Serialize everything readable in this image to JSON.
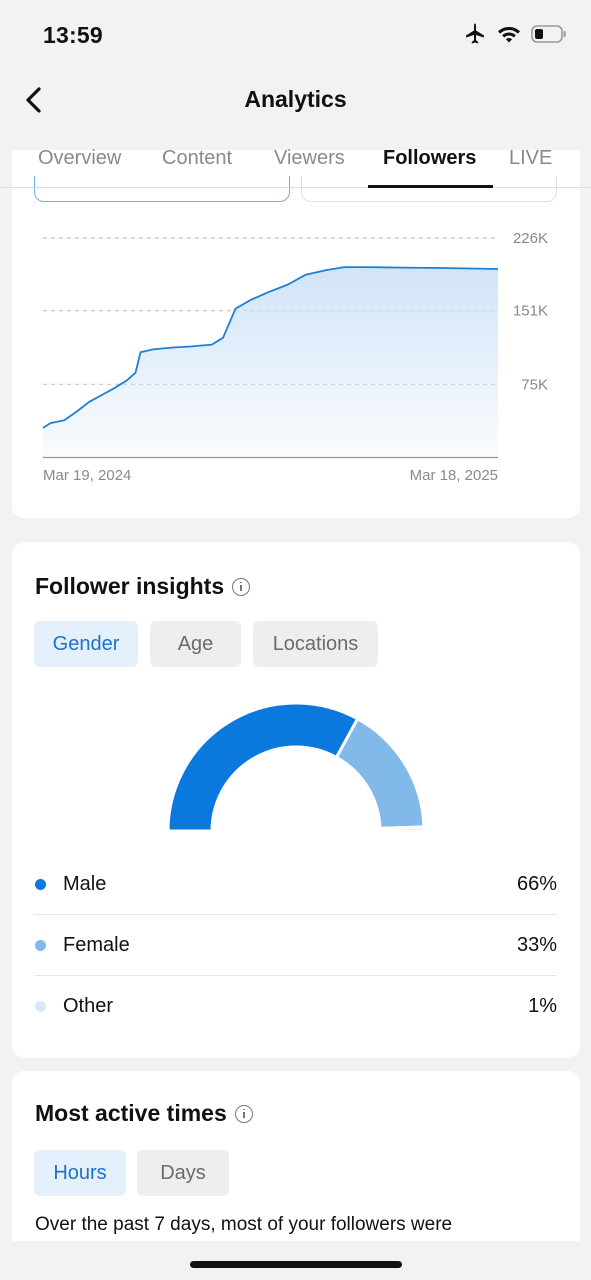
{
  "status_bar": {
    "time": "13:59",
    "icons": [
      "airplane-icon",
      "wifi-icon",
      "battery-icon"
    ]
  },
  "header": {
    "title": "Analytics",
    "back_icon": "chevron-left-icon"
  },
  "tabs": [
    {
      "label": "Overview",
      "active": false
    },
    {
      "label": "Content",
      "active": false
    },
    {
      "label": "Viewers",
      "active": false
    },
    {
      "label": "Followers",
      "active": true
    },
    {
      "label": "LIVE",
      "active": false
    }
  ],
  "chart_data": {
    "type": "area",
    "title": "",
    "xlabel": "",
    "ylabel": "",
    "x_ticks": [
      "Mar 19, 2024",
      "Mar 18, 2025"
    ],
    "y_ticks": [
      {
        "label": "226K",
        "value": 226000
      },
      {
        "label": "151K",
        "value": 151000
      },
      {
        "label": "75K",
        "value": 75000
      }
    ],
    "ylim": [
      0,
      226000
    ],
    "grid": true,
    "x_start_label": "Mar 19, 2024",
    "x_end_label": "Mar 18, 2025",
    "line_color": "#1e7fd6",
    "fill_color": "#cfe3f7",
    "series": [
      {
        "x": [
          "2024-03-19",
          "2024-03-25",
          "2024-04-05",
          "2024-04-15",
          "2024-04-25",
          "2024-05-05",
          "2024-05-15",
          "2024-05-25",
          "2024-06-01",
          "2024-06-05",
          "2024-06-15",
          "2024-07-01",
          "2024-07-15",
          "2024-08-01",
          "2024-08-10",
          "2024-08-20",
          "2024-09-01",
          "2024-09-15",
          "2024-10-01",
          "2024-10-15",
          "2024-11-01",
          "2024-11-15",
          "2024-12-01",
          "2025-01-01",
          "2025-02-01",
          "2025-03-18"
        ],
        "values": [
          30000,
          35000,
          38000,
          47000,
          57000,
          64000,
          71000,
          79000,
          87000,
          108000,
          111000,
          113000,
          114000,
          116000,
          123000,
          153000,
          162000,
          170000,
          178000,
          188000,
          193000,
          196000,
          196000,
          195500,
          195000,
          194000
        ]
      }
    ]
  },
  "insights": {
    "title": "Follower insights",
    "chips": [
      {
        "label": "Gender",
        "active": true
      },
      {
        "label": "Age",
        "active": false
      },
      {
        "label": "Locations",
        "active": false
      }
    ],
    "gender_chart": {
      "type": "pie",
      "style": "half-donut",
      "categories": [
        "Male",
        "Female",
        "Other"
      ],
      "values": [
        66,
        33,
        1
      ],
      "colors": [
        "#0a78dc",
        "#82b9eb",
        "#d7e7f7"
      ]
    },
    "legend": [
      {
        "label": "Male",
        "value": "66%",
        "color": "#0a78dc"
      },
      {
        "label": "Female",
        "value": "33%",
        "color": "#82b9eb"
      },
      {
        "label": "Other",
        "value": "1%",
        "color": "#d7e7f7"
      }
    ]
  },
  "active_times": {
    "title": "Most active times",
    "chips": [
      {
        "label": "Hours",
        "active": true
      },
      {
        "label": "Days",
        "active": false
      }
    ],
    "description": "Over the past 7 days, most of your followers were"
  }
}
